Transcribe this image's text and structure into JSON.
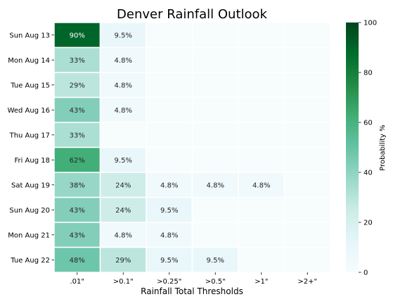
{
  "chart_data": {
    "type": "heatmap",
    "title": "Denver Rainfall Outlook",
    "xlabel": "Rainfall Total Thresholds",
    "ylabel": "",
    "x_categories": [
      ".01\"",
      ">0.1\"",
      ">0.25\"",
      ">0.5\"",
      ">1\"",
      ">2+\""
    ],
    "y_categories": [
      "Sun Aug 13",
      "Mon Aug 14",
      "Tue Aug 15",
      "Wed Aug 16",
      "Thu Aug 17",
      "Fri Aug 18",
      "Sat Aug 19",
      "Sun Aug 20",
      "Mon Aug 21",
      "Tue Aug 22"
    ],
    "values": [
      [
        90,
        9.5,
        0,
        0,
        0,
        0
      ],
      [
        33,
        4.8,
        0,
        0,
        0,
        0
      ],
      [
        29,
        4.8,
        0,
        0,
        0,
        0
      ],
      [
        43,
        4.8,
        0,
        0,
        0,
        0
      ],
      [
        33,
        0,
        0,
        0,
        0,
        0
      ],
      [
        62,
        9.5,
        0,
        0,
        0,
        0
      ],
      [
        38,
        24,
        4.8,
        4.8,
        4.8,
        0
      ],
      [
        43,
        24,
        9.5,
        0,
        0,
        0
      ],
      [
        43,
        4.8,
        4.8,
        0,
        0,
        0
      ],
      [
        48,
        29,
        9.5,
        9.5,
        0,
        0
      ]
    ],
    "cell_labels": [
      [
        "90%",
        "9.5%",
        "",
        "",
        "",
        ""
      ],
      [
        "33%",
        "4.8%",
        "",
        "",
        "",
        ""
      ],
      [
        "29%",
        "4.8%",
        "",
        "",
        "",
        ""
      ],
      [
        "43%",
        "4.8%",
        "",
        "",
        "",
        ""
      ],
      [
        "33%",
        "",
        "",
        "",
        "",
        ""
      ],
      [
        "62%",
        "9.5%",
        "",
        "",
        "",
        ""
      ],
      [
        "38%",
        "24%",
        "4.8%",
        "4.8%",
        "4.8%",
        ""
      ],
      [
        "43%",
        "24%",
        "9.5%",
        "",
        "",
        ""
      ],
      [
        "43%",
        "4.8%",
        "4.8%",
        "",
        "",
        ""
      ],
      [
        "48%",
        "29%",
        "9.5%",
        "9.5%",
        "",
        ""
      ]
    ],
    "colorbar": {
      "label": "Probability %",
      "range": [
        0,
        100
      ],
      "ticks": [
        "0",
        "20",
        "40",
        "60",
        "80",
        "100"
      ],
      "colormap": [
        "#f7fcfd",
        "#e5f5f9",
        "#ccece6",
        "#99d8c9",
        "#66c2a4",
        "#41ae76",
        "#238b45",
        "#006d2c",
        "#00441b"
      ]
    },
    "grid": false,
    "legend": "colorbar-right"
  }
}
